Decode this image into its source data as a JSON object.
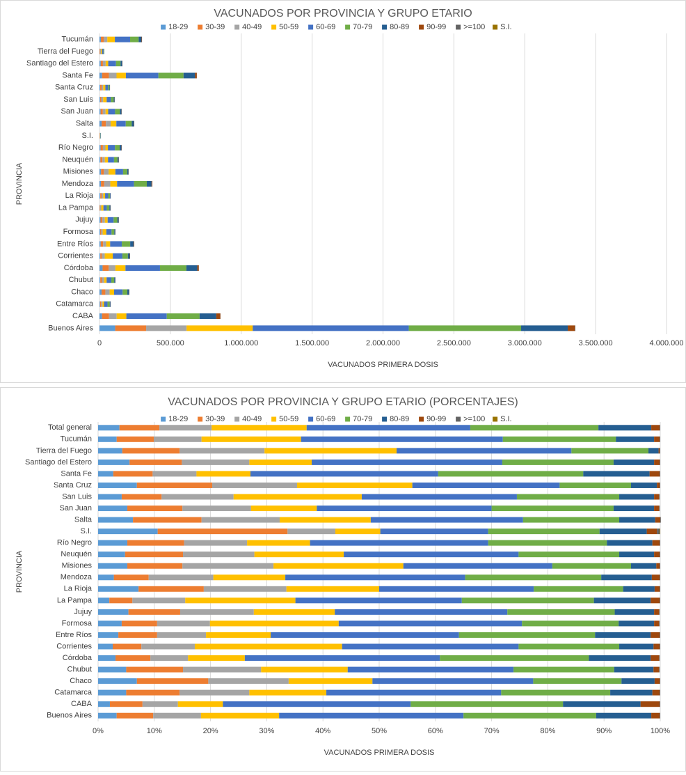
{
  "chart_data": [
    {
      "type": "bar",
      "orientation": "horizontal",
      "stacked": true,
      "title": "VACUNADOS POR PROVINCIA Y GRUPO ETARIO",
      "x_label": "VACUNADOS PRIMERA DOSIS",
      "y_label": "PROVINCIA",
      "categories": [
        "Buenos Aires",
        "CABA",
        "Catamarca",
        "Chaco",
        "Chubut",
        "Córdoba",
        "Corrientes",
        "Entre Ríos",
        "Formosa",
        "Jujuy",
        "La Pampa",
        "La Rioja",
        "Mendoza",
        "Misiones",
        "Neuquén",
        "Río Negro",
        "S.I.",
        "Salta",
        "San Juan",
        "San Luis",
        "Santa Cruz",
        "Santa Fe",
        "Santiago del Estero",
        "Tierra del Fuego",
        "Tucumán"
      ],
      "xlim": [
        0,
        4000000
      ],
      "xticks": [
        0,
        {
          "value": 500000,
          "label": "500.000"
        },
        {
          "value": 1000000,
          "label": "1.000.000"
        },
        {
          "value": 1500000,
          "label": "1.500.000"
        },
        {
          "value": 2000000,
          "label": "2.000.000"
        },
        {
          "value": 2500000,
          "label": "2.500.000"
        },
        {
          "value": 3000000,
          "label": "3.000.000"
        },
        {
          "value": 3500000,
          "label": "3.500.000"
        },
        {
          "value": 4000000,
          "label": "4.000.000"
        }
      ],
      "grid": true,
      "legend": "top",
      "series": [
        {
          "name": "18-29",
          "color": "#5b9bd5",
          "values": [
            110800,
            17900,
            4000,
            14600,
            5700,
            21800,
            5600,
            8800,
            4700,
            7400,
            1600,
            5700,
            10400,
            10700,
            6600,
            8200,
            1060,
            15200,
            8200,
            4500,
            5100,
            18500,
            9100,
            1500,
            9900
          ]
        },
        {
          "name": "30-39",
          "color": "#ed7d31",
          "values": [
            218200,
            49500,
            7500,
            26800,
            11400,
            43500,
            11000,
            16900,
            7100,
            12600,
            3200,
            9200,
            23100,
            20200,
            14100,
            15900,
            2310,
            29900,
            15400,
            7700,
            9900,
            48100,
            15100,
            3500,
            19800
          ]
        },
        {
          "name": "40-49",
          "color": "#a5a5a5",
          "values": [
            285300,
            53800,
            9800,
            30200,
            15700,
            47000,
            20500,
            21300,
            10600,
            17900,
            7400,
            11600,
            42900,
            33400,
            17400,
            17600,
            850,
            34100,
            19200,
            13800,
            11200,
            53600,
            19400,
            5100,
            25500
          ]
        },
        {
          "name": "50-59",
          "color": "#ffc000",
          "values": [
            466600,
            68300,
            10800,
            31400,
            17400,
            70900,
            56600,
            28200,
            25900,
            19700,
            15500,
            13000,
            47700,
            47600,
            21800,
            17600,
            800,
            39700,
            18400,
            24600,
            15200,
            66000,
            18000,
            8000,
            53100
          ]
        },
        {
          "name": "60-69",
          "color": "#4472c4",
          "values": [
            1101100,
            285200,
            24600,
            60300,
            33300,
            243600,
            67800,
            82100,
            36800,
            42100,
            23400,
            21700,
            119400,
            54600,
            42600,
            49800,
            1920,
            66400,
            48800,
            29800,
            19400,
            229500,
            54900,
            10600,
            107700
          ]
        },
        {
          "name": "70-79",
          "color": "#70ad47",
          "values": [
            792300,
            231400,
            15300,
            33100,
            20200,
            186000,
            38700,
            59300,
            19400,
            26200,
            18600,
            12600,
            90300,
            28800,
            24500,
            33100,
            1980,
            41900,
            34100,
            19700,
            9400,
            177200,
            32100,
            4700,
            60300
          ]
        },
        {
          "name": "80-89",
          "color": "#255e91",
          "values": [
            329000,
            117900,
            5900,
            12400,
            7900,
            77200,
            13200,
            24300,
            7100,
            9600,
            8000,
            4400,
            33600,
            9300,
            8500,
            12700,
            840,
            15700,
            11300,
            6700,
            3400,
            81100,
            11700,
            600,
            20400
          ]
        },
        {
          "name": "90-99",
          "color": "#9e480e",
          "values": [
            50400,
            29000,
            1000,
            1900,
            1100,
            10500,
            2400,
            3900,
            1000,
            1200,
            1300,
            700,
            5200,
            1200,
            1400,
            2000,
            180,
            2200,
            1400,
            1000,
            400,
            12400,
            1600,
            70,
            3000
          ]
        },
        {
          "name": ">=100",
          "color": "#636363",
          "values": [
            3400,
            900,
            100,
            200,
            100,
            700,
            200,
            200,
            100,
            100,
            100,
            100,
            400,
            200,
            100,
            200,
            50,
            200,
            200,
            100,
            100,
            700,
            200,
            30,
            300
          ]
        },
        {
          "name": "S.I.",
          "color": "#997300",
          "values": [
            0,
            0,
            0,
            0,
            0,
            0,
            0,
            0,
            0,
            0,
            0,
            0,
            0,
            0,
            0,
            0,
            10,
            0,
            0,
            0,
            0,
            0,
            0,
            0,
            0
          ]
        }
      ]
    },
    {
      "type": "bar",
      "orientation": "horizontal",
      "stacked": true,
      "title": "VACUNADOS POR PROVINCIA Y GRUPO ETARIO (PORCENTAJES)",
      "x_label": "VACUNADOS PRIMERA DOSIS",
      "y_label": "PROVINCIA",
      "categories": [
        "Buenos Aires",
        "CABA",
        "Catamarca",
        "Chaco",
        "Chubut",
        "Córdoba",
        "Corrientes",
        "Entre Ríos",
        "Formosa",
        "Jujuy",
        "La Pampa",
        "La Rioja",
        "Mendoza",
        "Misiones",
        "Neuquén",
        "Río Negro",
        "S.I.",
        "Salta",
        "San Juan",
        "San Luis",
        "Santa Cruz",
        "Santa Fe",
        "Santiago del Estero",
        "Tierra del Fuego",
        "Tucumán",
        "Total general"
      ],
      "xlim": [
        0,
        100
      ],
      "xticks": [
        {
          "value": 0,
          "label": "0%"
        },
        {
          "value": 10,
          "label": "10%"
        },
        {
          "value": 20,
          "label": "20%"
        },
        {
          "value": 30,
          "label": "30%"
        },
        {
          "value": 40,
          "label": "40%"
        },
        {
          "value": 50,
          "label": "50%"
        },
        {
          "value": 60,
          "label": "60%"
        },
        {
          "value": 70,
          "label": "70%"
        },
        {
          "value": 80,
          "label": "80%"
        },
        {
          "value": 90,
          "label": "90%"
        },
        {
          "value": 100,
          "label": "100%"
        }
      ],
      "grid": true,
      "legend": "top",
      "series": [
        {
          "name": "18-29",
          "color": "#5b9bd5",
          "values": [
            3.3,
            2.1,
            5.0,
            6.9,
            5.0,
            3.1,
            2.6,
            3.6,
            4.2,
            5.4,
            2.0,
            7.2,
            2.8,
            5.2,
            4.8,
            5.2,
            10.6,
            6.2,
            5.2,
            4.2,
            6.9,
            2.7,
            5.6,
            4.3,
            3.3,
            3.8
          ]
        },
        {
          "name": "30-39",
          "color": "#ed7d31",
          "values": [
            6.5,
            5.8,
            9.5,
            12.7,
            10.1,
            6.2,
            5.1,
            6.9,
            6.3,
            9.2,
            4.1,
            11.6,
            6.2,
            9.8,
            10.3,
            10.1,
            23.1,
            12.2,
            9.8,
            7.1,
            13.4,
            7.0,
            9.3,
            10.2,
            6.6,
            7.1
          ]
        },
        {
          "name": "40-49",
          "color": "#a5a5a5",
          "values": [
            8.5,
            6.3,
            12.4,
            14.3,
            13.9,
            6.7,
            9.5,
            8.7,
            9.4,
            13.1,
            9.4,
            14.7,
            11.5,
            16.2,
            12.7,
            11.2,
            8.5,
            13.9,
            12.2,
            12.8,
            15.1,
            7.8,
            12.0,
            15.1,
            8.5,
            9.3
          ]
        },
        {
          "name": "50-59",
          "color": "#ffc000",
          "values": [
            13.9,
            8.0,
            13.7,
            14.9,
            15.4,
            10.1,
            26.2,
            11.5,
            22.9,
            14.4,
            19.6,
            16.5,
            12.8,
            23.1,
            15.9,
            11.2,
            8.0,
            16.2,
            11.7,
            22.8,
            20.5,
            9.6,
            11.1,
            23.5,
            17.7,
            16.9
          ]
        },
        {
          "name": "60-69",
          "color": "#4472c4",
          "values": [
            32.8,
            33.4,
            31.1,
            28.6,
            29.5,
            34.7,
            31.4,
            33.5,
            32.6,
            30.7,
            29.6,
            27.5,
            32.0,
            26.5,
            31.1,
            31.7,
            19.2,
            27.1,
            31.1,
            27.6,
            26.2,
            33.4,
            33.9,
            31.1,
            35.9,
            29.1
          ]
        },
        {
          "name": "70-79",
          "color": "#70ad47",
          "values": [
            23.6,
            27.1,
            19.4,
            15.7,
            17.9,
            26.5,
            17.9,
            24.2,
            17.2,
            19.1,
            23.5,
            15.9,
            24.2,
            14.0,
            17.9,
            21.1,
            19.8,
            17.1,
            21.7,
            18.2,
            12.7,
            25.8,
            19.8,
            13.7,
            20.1,
            22.8
          ]
        },
        {
          "name": "80-89",
          "color": "#255e91",
          "values": [
            9.8,
            13.8,
            7.5,
            5.9,
            7.0,
            11.0,
            6.1,
            9.9,
            6.3,
            7.0,
            10.1,
            5.6,
            9.0,
            4.5,
            6.2,
            8.1,
            8.4,
            6.4,
            7.2,
            6.2,
            4.6,
            11.8,
            7.2,
            1.8,
            6.8,
            9.4
          ]
        },
        {
          "name": "90-99",
          "color": "#9e480e",
          "values": [
            1.5,
            3.4,
            1.3,
            0.9,
            1.0,
            1.5,
            1.1,
            1.6,
            0.9,
            0.9,
            1.6,
            0.9,
            1.4,
            0.6,
            1.0,
            1.3,
            1.8,
            0.9,
            0.9,
            0.9,
            0.5,
            1.8,
            1.0,
            0.2,
            1.0,
            1.5
          ]
        },
        {
          "name": ">=100",
          "color": "#636363",
          "values": [
            0.1,
            0.1,
            0.1,
            0.1,
            0.1,
            0.1,
            0.1,
            0.1,
            0.1,
            0.1,
            0.1,
            0.1,
            0.1,
            0.1,
            0.1,
            0.1,
            0.5,
            0.1,
            0.1,
            0.1,
            0.1,
            0.1,
            0.1,
            0.1,
            0.1,
            0.1
          ]
        },
        {
          "name": "S.I.",
          "color": "#997300",
          "values": [
            0,
            0,
            0,
            0,
            0,
            0,
            0,
            0,
            0,
            0,
            0,
            0,
            0,
            0,
            0,
            0,
            0.1,
            0,
            0,
            0,
            0,
            0,
            0,
            0,
            0,
            0
          ]
        }
      ]
    }
  ]
}
